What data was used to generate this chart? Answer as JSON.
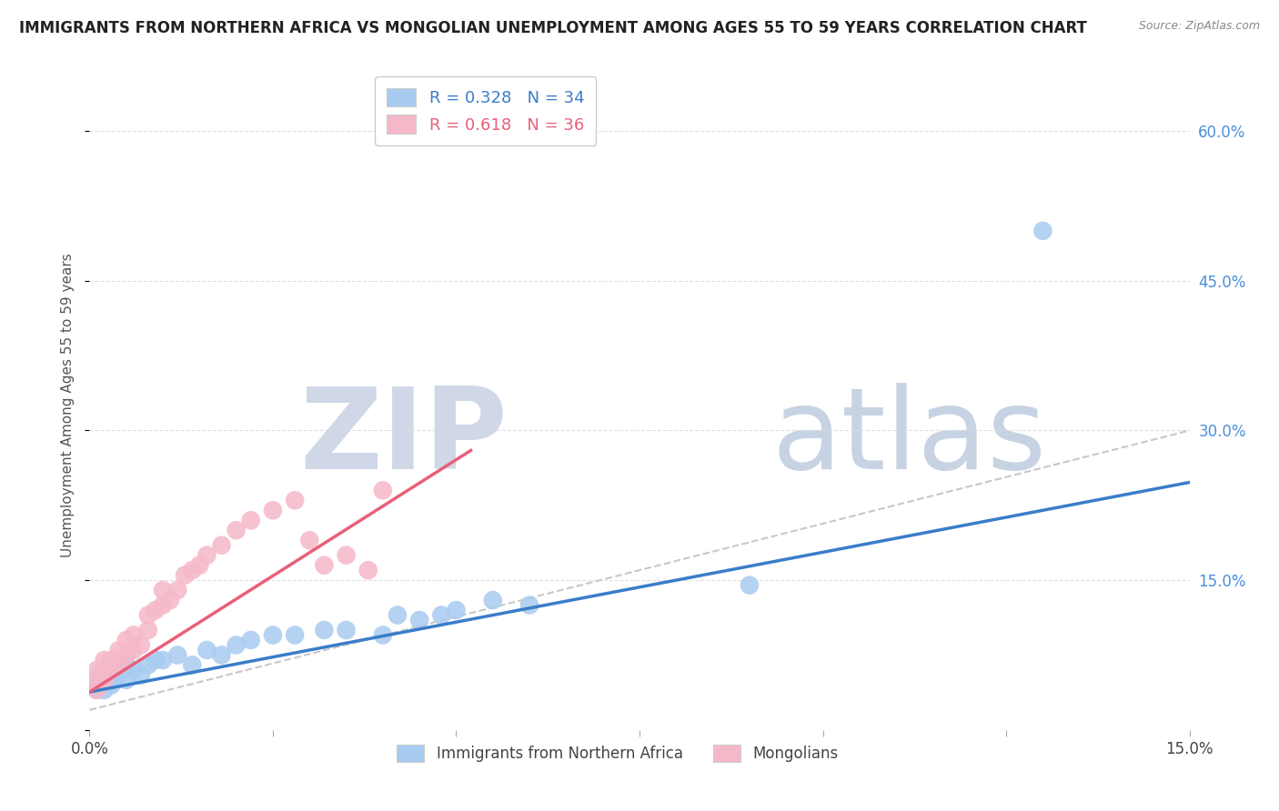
{
  "title": "IMMIGRANTS FROM NORTHERN AFRICA VS MONGOLIAN UNEMPLOYMENT AMONG AGES 55 TO 59 YEARS CORRELATION CHART",
  "source": "Source: ZipAtlas.com",
  "ylabel": "Unemployment Among Ages 55 to 59 years",
  "xlim": [
    0.0,
    0.15
  ],
  "ylim": [
    0.0,
    0.65
  ],
  "xticks": [
    0.0,
    0.025,
    0.05,
    0.075,
    0.1,
    0.125,
    0.15
  ],
  "yticks_right": [
    0.0,
    0.15,
    0.3,
    0.45,
    0.6
  ],
  "ytick_labels_right": [
    "",
    "15.0%",
    "30.0%",
    "45.0%",
    "60.0%"
  ],
  "legend_blue_r": "R = 0.328",
  "legend_blue_n": "N = 34",
  "legend_pink_r": "R = 0.618",
  "legend_pink_n": "N = 36",
  "blue_color": "#A8CBF0",
  "pink_color": "#F5B8C8",
  "blue_line_color": "#3A7DC9",
  "pink_line_color": "#E8607A",
  "gray_dash_color": "#C8C8C8",
  "watermark_zip": "ZIP",
  "watermark_atlas": "atlas",
  "watermark_color": "#D0D8E8",
  "watermark_atlas_color": "#90A8C8",
  "blue_scatter_x": [
    0.001,
    0.001,
    0.002,
    0.002,
    0.003,
    0.003,
    0.004,
    0.004,
    0.005,
    0.005,
    0.006,
    0.007,
    0.008,
    0.009,
    0.01,
    0.012,
    0.014,
    0.016,
    0.018,
    0.02,
    0.022,
    0.025,
    0.028,
    0.032,
    0.035,
    0.04,
    0.042,
    0.045,
    0.048,
    0.05,
    0.055,
    0.06,
    0.09,
    0.13
  ],
  "blue_scatter_y": [
    0.04,
    0.05,
    0.04,
    0.06,
    0.05,
    0.045,
    0.055,
    0.06,
    0.05,
    0.065,
    0.06,
    0.055,
    0.065,
    0.07,
    0.07,
    0.075,
    0.065,
    0.08,
    0.075,
    0.085,
    0.09,
    0.095,
    0.095,
    0.1,
    0.1,
    0.095,
    0.115,
    0.11,
    0.115,
    0.12,
    0.13,
    0.125,
    0.145,
    0.5
  ],
  "pink_scatter_x": [
    0.001,
    0.001,
    0.001,
    0.002,
    0.002,
    0.002,
    0.003,
    0.003,
    0.004,
    0.004,
    0.005,
    0.005,
    0.006,
    0.006,
    0.007,
    0.008,
    0.008,
    0.009,
    0.01,
    0.01,
    0.011,
    0.012,
    0.013,
    0.014,
    0.015,
    0.016,
    0.018,
    0.02,
    0.022,
    0.025,
    0.028,
    0.03,
    0.032,
    0.035,
    0.038,
    0.04
  ],
  "pink_scatter_y": [
    0.04,
    0.05,
    0.06,
    0.05,
    0.06,
    0.07,
    0.06,
    0.07,
    0.065,
    0.08,
    0.075,
    0.09,
    0.08,
    0.095,
    0.085,
    0.1,
    0.115,
    0.12,
    0.125,
    0.14,
    0.13,
    0.14,
    0.155,
    0.16,
    0.165,
    0.175,
    0.185,
    0.2,
    0.21,
    0.22,
    0.23,
    0.19,
    0.165,
    0.175,
    0.16,
    0.24
  ],
  "background_color": "#FFFFFF",
  "grid_color": "#DDDDDD"
}
